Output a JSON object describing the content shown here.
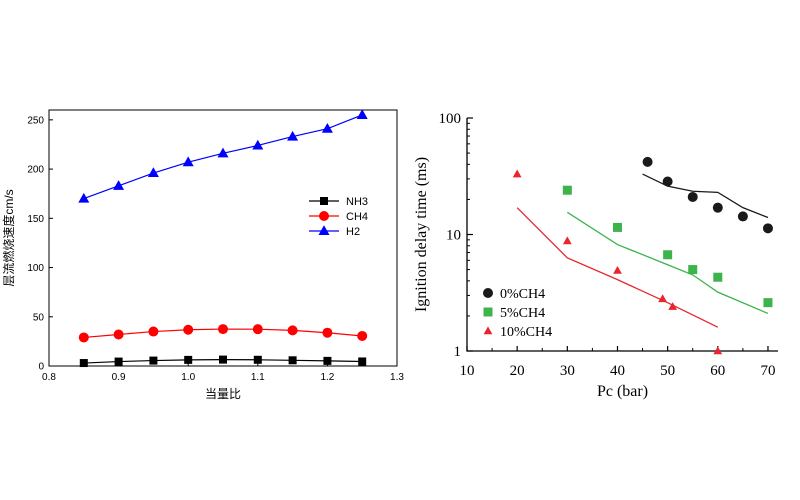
{
  "chart_data": [
    {
      "type": "line",
      "title": "",
      "xlabel": "当量比",
      "ylabel": "层流燃烧速度cm/s",
      "xlim": [
        0.8,
        1.3
      ],
      "ylim": [
        0,
        260
      ],
      "xticks": [
        "0.8",
        "0.9",
        "1.0",
        "1.1",
        "1.2",
        "1.3"
      ],
      "yticks": [
        "0",
        "50",
        "100",
        "150",
        "200",
        "250"
      ],
      "grid": false,
      "legend_position": "right-middle",
      "x": [
        0.85,
        0.9,
        0.95,
        1.0,
        1.05,
        1.1,
        1.15,
        1.2,
        1.25
      ],
      "series": [
        {
          "name": "NH3",
          "marker": "square",
          "color": "#000000",
          "values": [
            3,
            4.5,
            5.5,
            6.2,
            6.5,
            6.3,
            5.8,
            5.2,
            4.6
          ]
        },
        {
          "name": "CH4",
          "marker": "circle",
          "color": "#ff0000",
          "values": [
            29,
            32,
            35,
            36.8,
            37.5,
            37.4,
            36.2,
            33.8,
            30.5
          ]
        },
        {
          "name": "H2",
          "marker": "triangle",
          "color": "#0000ff",
          "values": [
            170,
            183,
            196,
            207,
            216,
            224,
            233,
            241,
            255
          ]
        }
      ]
    },
    {
      "type": "scatter",
      "title": "",
      "xlabel": "Pc (bar)",
      "ylabel": "Ignition delay time (ms)",
      "xscale": "linear",
      "yscale": "log",
      "xlim": [
        10,
        72
      ],
      "ylim": [
        1,
        100
      ],
      "xticks": [
        "10",
        "20",
        "30",
        "40",
        "50",
        "60",
        "70"
      ],
      "yticks": [
        "1",
        "10",
        "100"
      ],
      "grid": false,
      "legend_position": "bottom-left",
      "series": [
        {
          "name": "0%CH4",
          "marker": "circle",
          "color": "#1a1a1a",
          "points": [
            [
              46,
              42
            ],
            [
              50,
              28.5
            ],
            [
              55,
              21
            ],
            [
              60,
              17
            ],
            [
              65,
              14.3
            ],
            [
              70,
              11.3
            ]
          ],
          "model": [
            [
              45,
              33
            ],
            [
              50,
              26
            ],
            [
              55,
              23.5
            ],
            [
              60,
              23
            ],
            [
              65,
              17
            ],
            [
              70,
              14
            ]
          ]
        },
        {
          "name": "5%CH4",
          "marker": "square",
          "color": "#3cb44b",
          "points": [
            [
              30,
              24
            ],
            [
              40,
              11.5
            ],
            [
              50,
              6.7
            ],
            [
              55,
              5
            ],
            [
              60,
              4.3
            ],
            [
              70,
              2.6
            ]
          ],
          "model": [
            [
              30,
              15.5
            ],
            [
              40,
              8.2
            ],
            [
              50,
              5.5
            ],
            [
              55,
              4.5
            ],
            [
              60,
              3.2
            ],
            [
              70,
              2.1
            ]
          ]
        },
        {
          "name": "10%CH4",
          "marker": "triangle",
          "color": "#e8262c",
          "points": [
            [
              20,
              33
            ],
            [
              30,
              8.8
            ],
            [
              40,
              4.9
            ],
            [
              49,
              2.8
            ],
            [
              51,
              2.4
            ],
            [
              60,
              1
            ]
          ],
          "model": [
            [
              20,
              17
            ],
            [
              30,
              6.3
            ],
            [
              40,
              4.1
            ],
            [
              50,
              2.6
            ],
            [
              60,
              1.6
            ]
          ]
        }
      ]
    }
  ]
}
